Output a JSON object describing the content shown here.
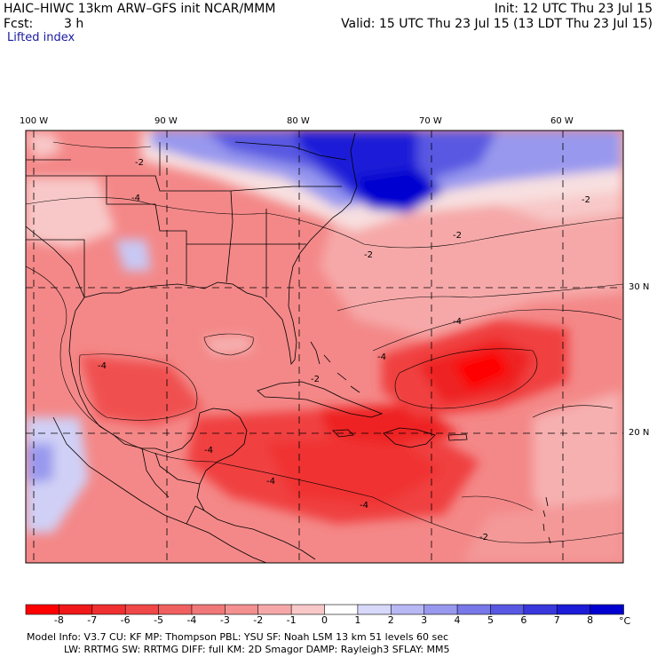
{
  "header": {
    "title": "HAIC–HIWC 13km ARW–GFS init   NCAR/MMM",
    "init": "Init: 12 UTC Thu 23 Jul 15",
    "fcst_label": "Fcst:",
    "fcst_value": "3 h",
    "valid": "Valid: 15 UTC Thu 23 Jul 15 (13 LDT Thu 23 Jul 15)",
    "field": "Lifted index"
  },
  "axes": {
    "lon_labels": [
      "100 W",
      "90 W",
      "80 W",
      "70 W",
      "60 W"
    ],
    "lat_labels": [
      "30 N",
      "20 N"
    ]
  },
  "map": {
    "contour_labels": [
      "-2",
      "-4",
      "-4",
      "-4",
      "-4",
      "-2",
      "-2",
      "-2",
      "-4",
      "-2",
      "-4",
      "-4",
      "-2"
    ],
    "colors": {
      "deep_red": "#ff0000",
      "red": "#f03030",
      "mid_red": "#f06060",
      "light_red": "#f4a0a0",
      "pink": "#f8c8c8",
      "white": "#ffffff",
      "light_blue": "#c8c8f8",
      "blue": "#5050e0",
      "deep_blue": "#0000e0"
    }
  },
  "colorbar": {
    "labels": [
      "-8",
      "-7",
      "-6",
      "-5",
      "-4",
      "-3",
      "-2",
      "-1",
      "0",
      "1",
      "2",
      "3",
      "4",
      "5",
      "6",
      "7",
      "8"
    ],
    "unit": "°C",
    "colors": [
      "#ff0000",
      "#f01818",
      "#f03030",
      "#f04848",
      "#f06060",
      "#f07878",
      "#f49090",
      "#f6a8a8",
      "#f8c8c8",
      "#ffffff",
      "#d8d8fa",
      "#b8b8f4",
      "#9898ee",
      "#7878e8",
      "#5858e2",
      "#3838dc",
      "#1c1cd8",
      "#0000d0"
    ]
  },
  "model_info": {
    "line1": "Model Info: V3.7      CU: KF      MP: Thompson      PBL: YSU       SF: Noah LSM     13 km     51 levels    60 sec",
    "line2": "LW: RRTMG     SW: RRTMG   DIFF: full    KM: 2D Smagor DAMP: Rayleigh3   SFLAY: MM5"
  }
}
